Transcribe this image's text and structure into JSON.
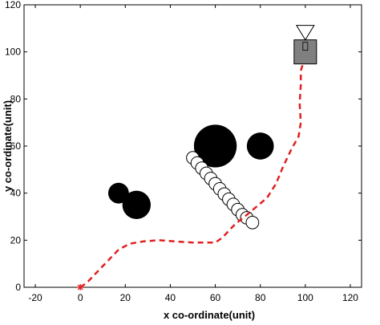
{
  "chart_data": {
    "type": "scatter",
    "title": "",
    "xlabel": "x co-ordinate(unit)",
    "ylabel": "y co-ordinate(unit)",
    "xlim": [
      -25,
      125
    ],
    "ylim": [
      0,
      120
    ],
    "xticks": [
      -20,
      0,
      20,
      40,
      60,
      80,
      100,
      120
    ],
    "yticks": [
      0,
      20,
      40,
      60,
      80,
      100,
      120
    ],
    "xtick_labels": [
      "-20",
      "0",
      "20",
      "40",
      "60",
      "80",
      "100",
      "120"
    ],
    "ytick_labels": [
      "0",
      "20",
      "40",
      "60",
      "80",
      "100",
      "120"
    ],
    "grid": false,
    "colors": {
      "path": "#e02020",
      "obstacle": "#000000",
      "goal_box": "#808080",
      "axes": "#000000"
    },
    "start": {
      "x": 0,
      "y": 0,
      "marker": "asterisk"
    },
    "goal": {
      "x": 100,
      "y": 100,
      "marker": "square-with-triangle"
    },
    "static_obstacles": [
      {
        "x": 17,
        "y": 40,
        "r": 4.6
      },
      {
        "x": 25,
        "y": 35,
        "r": 6.3
      },
      {
        "x": 60,
        "y": 60,
        "r": 9.5
      },
      {
        "x": 80,
        "y": 60,
        "r": 6.0
      }
    ],
    "dynamic_obstacle_trail": [
      {
        "x": 50,
        "y": 55
      },
      {
        "x": 52,
        "y": 52.8
      },
      {
        "x": 54,
        "y": 50.6
      },
      {
        "x": 56,
        "y": 48.4
      },
      {
        "x": 58,
        "y": 46.2
      },
      {
        "x": 60,
        "y": 44.0
      },
      {
        "x": 62,
        "y": 41.8
      },
      {
        "x": 64,
        "y": 39.6
      },
      {
        "x": 66,
        "y": 37.4
      },
      {
        "x": 68,
        "y": 35.2
      },
      {
        "x": 70,
        "y": 33.0
      },
      {
        "x": 72,
        "y": 30.8
      },
      {
        "x": 74,
        "y": 29.5
      },
      {
        "x": 76.5,
        "y": 27.5
      }
    ],
    "dynamic_obstacle_radius": 2.8,
    "path": [
      [
        0,
        0
      ],
      [
        3,
        2
      ],
      [
        6,
        5
      ],
      [
        9,
        8
      ],
      [
        13,
        12
      ],
      [
        17,
        16
      ],
      [
        22,
        18.5
      ],
      [
        28,
        19.5
      ],
      [
        35,
        20
      ],
      [
        42,
        19.5
      ],
      [
        50,
        19
      ],
      [
        56,
        19
      ],
      [
        60,
        19
      ],
      [
        63,
        21
      ],
      [
        66,
        24
      ],
      [
        69,
        27
      ],
      [
        73,
        30
      ],
      [
        78,
        34
      ],
      [
        83,
        38
      ],
      [
        87,
        44
      ],
      [
        90,
        51
      ],
      [
        94,
        59
      ],
      [
        97,
        64
      ],
      [
        98,
        70
      ],
      [
        97.5,
        78
      ],
      [
        98,
        86
      ],
      [
        98,
        92
      ],
      [
        99,
        95
      ],
      [
        100,
        100
      ]
    ]
  }
}
